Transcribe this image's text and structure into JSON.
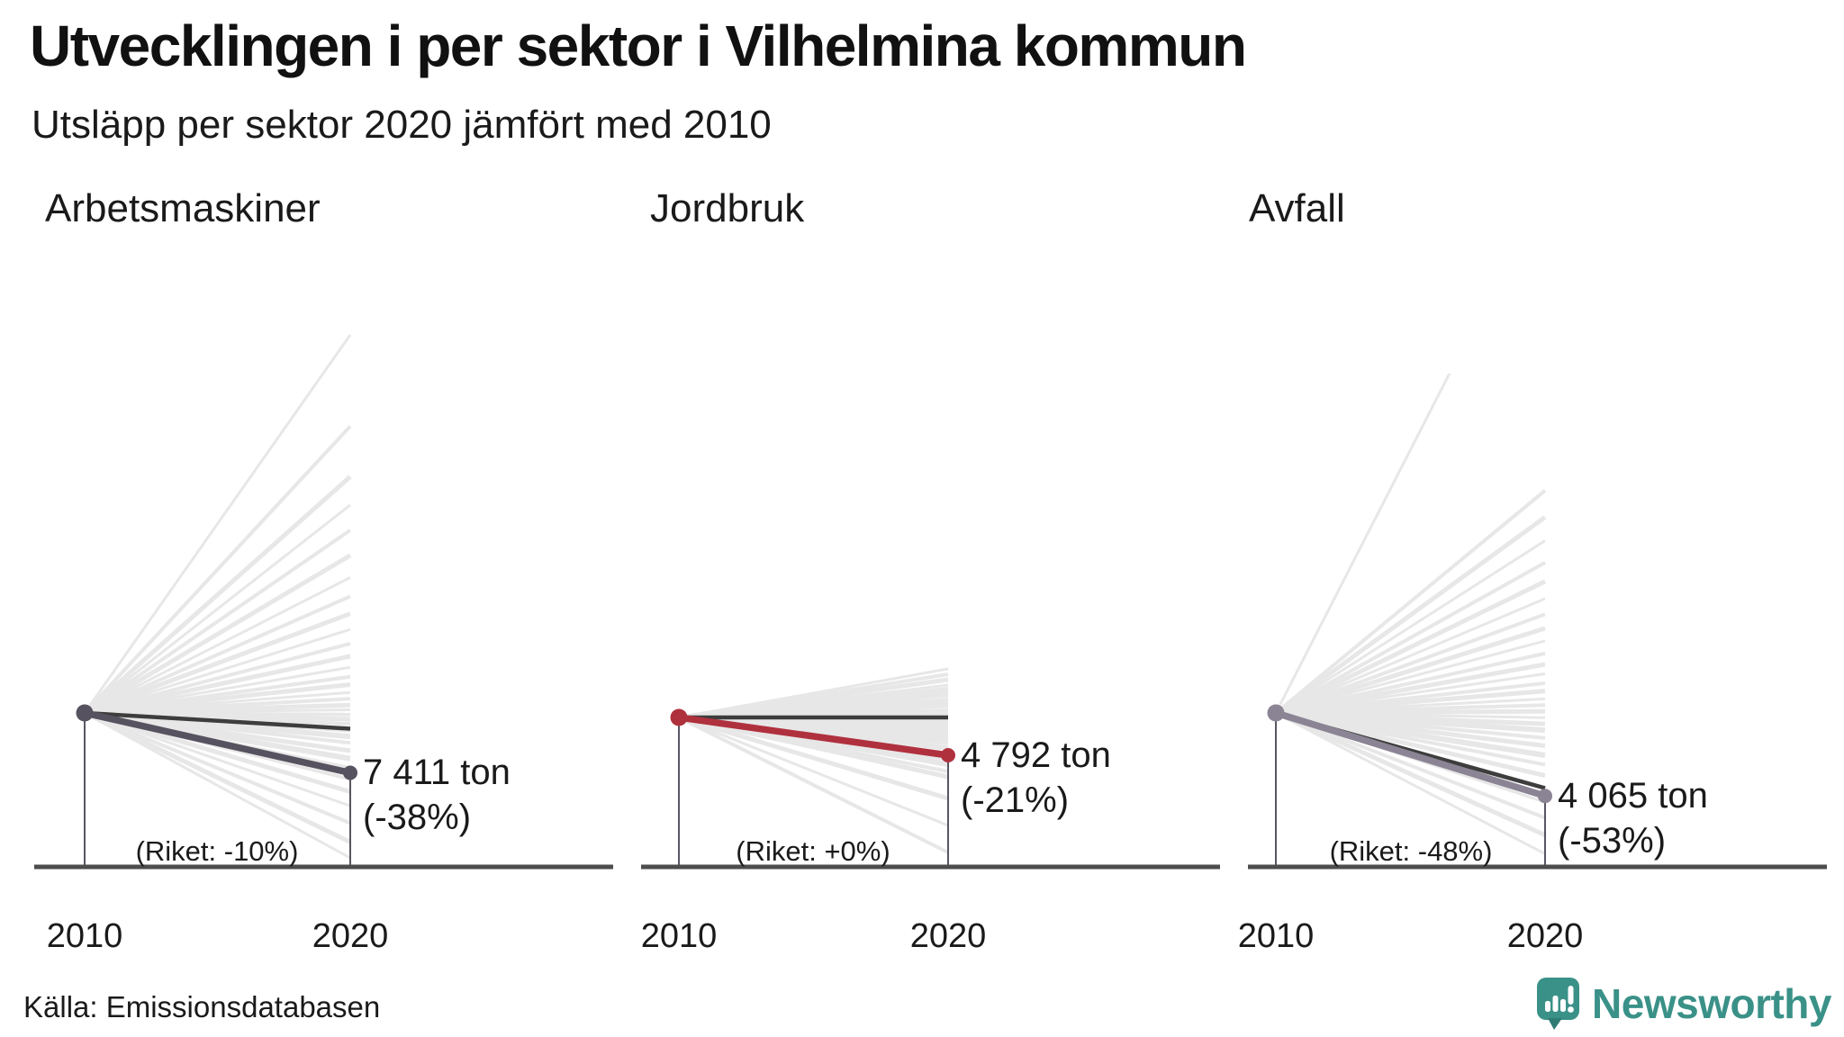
{
  "title": "Utvecklingen i per sektor i Vilhelmina kommun",
  "subtitle": "Utsläpp per sektor 2020 jämfört med 2010",
  "source": "Källa: Emissionsdatabasen",
  "logo": {
    "brand": "Newsworthy",
    "icon": "newsworthy-speech-bubble-bars-icon",
    "color": "#3a9188"
  },
  "colors": {
    "panel_highlight": [
      "#57525f",
      "#b0313e",
      "#8a8494"
    ],
    "riket_line": "#3d3d3d",
    "baseline": "#4d4d4d",
    "background_lines": "#e7e7e7",
    "drop_line": "#454350",
    "text": "#1a1a1a"
  },
  "chart_data": [
    {
      "type": "line",
      "sector": "Arbetsmaskiner",
      "x": [
        2010,
        2020
      ],
      "year_labels": [
        "2010",
        "2020"
      ],
      "municipality": {
        "name": "Vilhelmina",
        "value_2020_ton": 7411,
        "value_label": "7 411 ton",
        "change_pct": -38,
        "change_label": "(-38%)"
      },
      "riket": {
        "change_pct": -10,
        "label": "(Riket: -10%)"
      },
      "background_lines_change_pct": [
        240,
        182,
        150,
        132,
        116,
        100,
        86,
        74,
        63,
        53,
        44,
        36,
        29,
        23,
        18,
        13,
        9,
        5,
        2,
        -1,
        -4,
        -7,
        -11,
        -15,
        -19,
        -24,
        -29,
        -35,
        -42,
        -50,
        -59,
        -70,
        -82,
        -92
      ]
    },
    {
      "type": "line",
      "sector": "Jordbruk",
      "x": [
        2010,
        2020
      ],
      "year_labels": [
        "2010",
        "2020"
      ],
      "municipality": {
        "name": "Vilhelmina",
        "value_2020_ton": 4792,
        "value_label": "4 792 ton",
        "change_pct": -21,
        "change_label": "(-21%)"
      },
      "riket": {
        "change_pct": 0,
        "label": "(Riket: +0%)"
      },
      "background_lines_change_pct": [
        27,
        24,
        21,
        18,
        16,
        14,
        12,
        10,
        8,
        6,
        4,
        2,
        0,
        -2,
        -4,
        -6,
        -8,
        -10,
        -12,
        -14,
        -17,
        -20,
        -23,
        -26,
        -30,
        -33,
        -45,
        -60,
        -75
      ]
    },
    {
      "type": "line",
      "sector": "Avfall",
      "x": [
        2010,
        2020
      ],
      "year_labels": [
        "2010",
        "2020"
      ],
      "municipality": {
        "name": "Vilhelmina",
        "value_2020_ton": 4065,
        "value_label": "4 065 ton",
        "change_pct": -53,
        "change_label": "(-53%)"
      },
      "riket": {
        "change_pct": -48,
        "label": "(Riket: -48%)"
      },
      "background_lines_change_pct": [
        336,
        142,
        125,
        110,
        96,
        84,
        73,
        63,
        54,
        46,
        38,
        31,
        25,
        19,
        14,
        9,
        5,
        1,
        -3,
        -7,
        -11,
        -16,
        -21,
        -27,
        -33,
        -40,
        -48,
        -57,
        -67,
        -78,
        -90
      ]
    }
  ]
}
